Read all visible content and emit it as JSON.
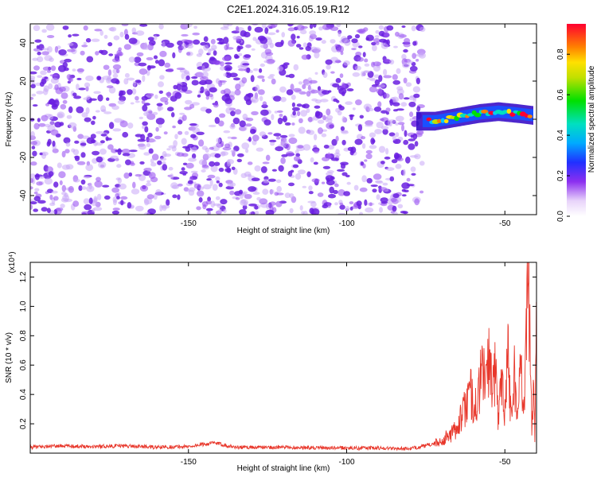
{
  "title": "C2E1.2024.316.05.19.R12",
  "chart_data": [
    {
      "type": "heatmap",
      "xlabel": "Height of straight line (km)",
      "ylabel": "Frequency (Hz)",
      "xlim": [
        -200,
        -40
      ],
      "ylim": [
        -50,
        50
      ],
      "x_ticks": [
        -150,
        -100,
        -50
      ],
      "y_ticks": [
        -40,
        -20,
        0,
        20,
        40
      ],
      "colorbar": {
        "label": "Normalized spectral amplitude",
        "ticks": [
          0.0,
          0.2,
          0.4,
          0.6,
          0.8
        ],
        "range": [
          0.0,
          0.95
        ]
      },
      "noise_region_km": [
        -200,
        -78
      ],
      "signal_band": {
        "x_range_km": [
          -78,
          -41
        ],
        "center_frequency_hz": [
          {
            "x": -78,
            "f": -1
          },
          {
            "x": -72,
            "f": -1
          },
          {
            "x": -65,
            "f": 1
          },
          {
            "x": -58,
            "f": 3
          },
          {
            "x": -52,
            "f": 4
          },
          {
            "x": -46,
            "f": 3
          },
          {
            "x": -41,
            "f": 2
          }
        ],
        "half_width_hz": 3.5
      }
    },
    {
      "type": "line",
      "xlabel": "Height of straight line (km)",
      "ylabel": "SNR (10 * v/v)",
      "y_multiplier": "(x10⁴)",
      "xlim": [
        -200,
        -40
      ],
      "ylim": [
        0,
        1.3
      ],
      "x_ticks": [
        -150,
        -100,
        -50
      ],
      "y_ticks": [
        0.2,
        0.4,
        0.6,
        0.8,
        1.0,
        1.2
      ],
      "series": [
        {
          "color": "#e8382c",
          "points": [
            [
              -200,
              0.04
            ],
            [
              -190,
              0.05
            ],
            [
              -180,
              0.045
            ],
            [
              -170,
              0.05
            ],
            [
              -160,
              0.04
            ],
            [
              -150,
              0.045
            ],
            [
              -142,
              0.07
            ],
            [
              -135,
              0.04
            ],
            [
              -120,
              0.04
            ],
            [
              -105,
              0.035
            ],
            [
              -90,
              0.035
            ],
            [
              -80,
              0.03
            ],
            [
              -75,
              0.05
            ],
            [
              -70,
              0.08
            ],
            [
              -66,
              0.15
            ],
            [
              -63,
              0.28
            ],
            [
              -61,
              0.42
            ],
            [
              -59,
              0.3
            ],
            [
              -57,
              0.6
            ],
            [
              -56,
              0.45
            ],
            [
              -55,
              0.72
            ],
            [
              -54,
              0.35
            ],
            [
              -53,
              0.62
            ],
            [
              -52,
              0.2
            ],
            [
              -51,
              0.58
            ],
            [
              -50,
              0.3
            ],
            [
              -49,
              0.72
            ],
            [
              -48,
              0.22
            ],
            [
              -47,
              0.6
            ],
            [
              -46,
              0.18
            ],
            [
              -45,
              0.72
            ],
            [
              -44,
              0.3
            ],
            [
              -43,
              0.95
            ],
            [
              -42.5,
              1.3
            ],
            [
              -42,
              0.8
            ],
            [
              -41.5,
              0.2
            ],
            [
              -41,
              0.4
            ],
            [
              -40.5,
              0.1
            ],
            [
              -40,
              0.9
            ]
          ]
        }
      ]
    }
  ],
  "colors": {
    "noise_purple": "#7f2ff0",
    "line_red": "#e8382c"
  }
}
